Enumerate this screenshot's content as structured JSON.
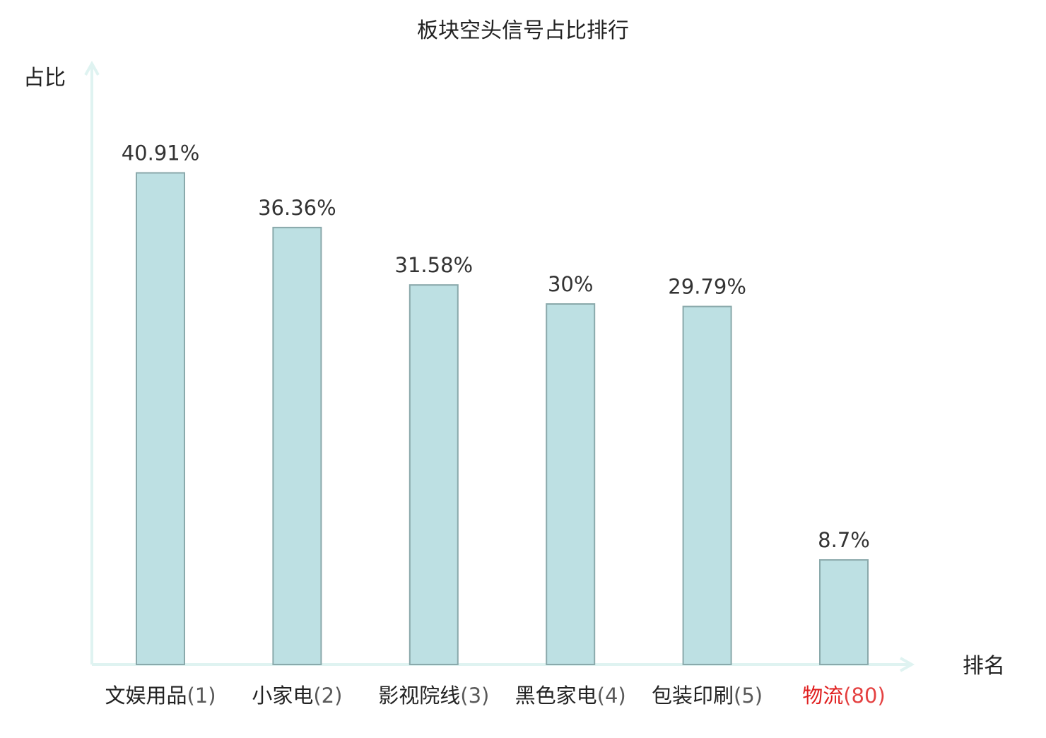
{
  "chart_data": {
    "type": "bar",
    "title": "板块空头信号占比排行",
    "ylabel": "占比",
    "xlabel": "排名",
    "categories": [
      {
        "name": "文娱用品",
        "rank": "(1)",
        "highlight": false
      },
      {
        "name": "小家电",
        "rank": "(2)",
        "highlight": false
      },
      {
        "name": "影视院线",
        "rank": "(3)",
        "highlight": false
      },
      {
        "name": "黑色家电",
        "rank": "(4)",
        "highlight": false
      },
      {
        "name": "包装印刷",
        "rank": "(5)",
        "highlight": false
      },
      {
        "name": "物流",
        "rank": "(80)",
        "highlight": true
      }
    ],
    "values": [
      40.91,
      36.36,
      31.58,
      30,
      29.79,
      8.7
    ],
    "value_labels": [
      "40.91%",
      "36.36%",
      "31.58%",
      "30%",
      "29.79%",
      "8.7%"
    ],
    "ylim": [
      0,
      47
    ],
    "grid": false,
    "colors": {
      "bar_fill": "#bde0e3",
      "bar_stroke": "#8aa9ab",
      "axis": "#dff3f1",
      "text": "#333333",
      "label": "#222222",
      "highlight": "#e02020"
    }
  }
}
